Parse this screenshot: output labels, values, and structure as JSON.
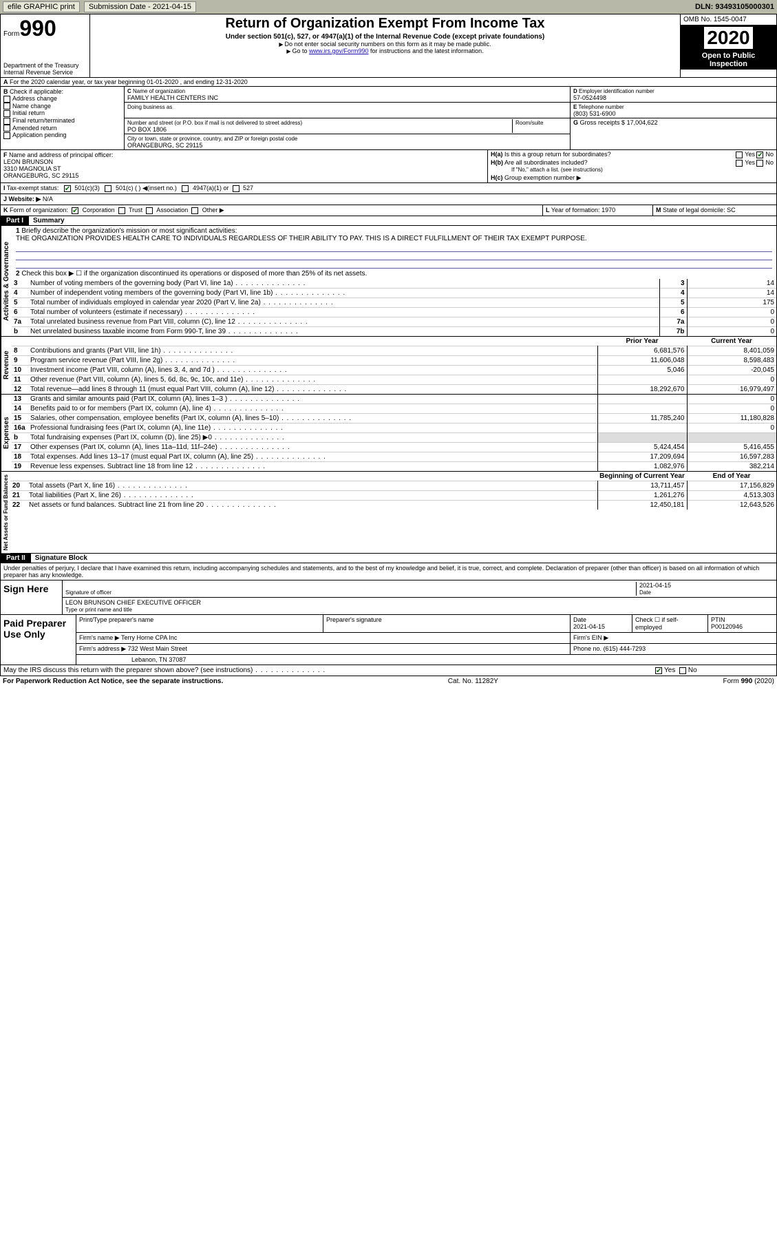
{
  "topbar": {
    "efile": "efile GRAPHIC print",
    "subdate_label": "Submission Date - 2021-04-15",
    "dln": "DLN: 93493105000301"
  },
  "header": {
    "form": "Form",
    "num": "990",
    "dept": "Department of the Treasury\nInternal Revenue Service",
    "title": "Return of Organization Exempt From Income Tax",
    "subtitle": "Under section 501(c), 527, or 4947(a)(1) of the Internal Revenue Code (except private foundations)",
    "note1": "Do not enter social security numbers on this form as it may be made public.",
    "note2_pre": "Go to ",
    "note2_link": "www.irs.gov/Form990",
    "note2_post": " for instructions and the latest information.",
    "omb": "OMB No. 1545-0047",
    "year": "2020",
    "open": "Open to Public Inspection"
  },
  "lineA": "For the 2020 calendar year, or tax year beginning 01-01-2020    , and ending 12-31-2020",
  "boxB": {
    "label": "Check if applicable:",
    "items": [
      "Address change",
      "Name change",
      "Initial return",
      "Final return/terminated",
      "Amended return",
      "Application pending"
    ]
  },
  "boxC": {
    "name_label": "Name of organization",
    "name": "FAMILY HEALTH CENTERS INC",
    "dba_label": "Doing business as",
    "addr_label": "Number and street (or P.O. box if mail is not delivered to street address)",
    "room_label": "Room/suite",
    "addr": "PO BOX 1806",
    "city_label": "City or town, state or province, country, and ZIP or foreign postal code",
    "city": "ORANGEBURG, SC  29115"
  },
  "boxD": {
    "label": "Employer identification number",
    "val": "57-0524498"
  },
  "boxE": {
    "label": "Telephone number",
    "val": "(803) 531-6900"
  },
  "boxG": {
    "label": "Gross receipts $",
    "val": "17,004,622"
  },
  "boxF": {
    "label": "Name and address of principal officer:",
    "name": "LEON BRUNSON",
    "addr1": "3310 MAGNOLIA ST",
    "addr2": "ORANGEBURG, SC  29115"
  },
  "boxH": {
    "a": "Is this a group return for subordinates?",
    "b": "Are all subordinates included?",
    "b_note": "If \"No,\" attach a list. (see instructions)",
    "c": "Group exemption number ▶"
  },
  "taxexempt": {
    "label": "Tax-exempt status:",
    "c3": "501(c)(3)",
    "c": "501(c) (  ) ◀(insert no.)",
    "a1": "4947(a)(1) or",
    "s527": "527"
  },
  "boxJ": {
    "label": "Website: ▶",
    "val": "N/A"
  },
  "boxK": {
    "label": "Form of organization:",
    "corp": "Corporation",
    "trust": "Trust",
    "assoc": "Association",
    "other": "Other ▶"
  },
  "boxL": {
    "label": "Year of formation:",
    "val": "1970"
  },
  "boxM": {
    "label": "State of legal domicile:",
    "val": "SC"
  },
  "part1": {
    "bar": "Part I",
    "title": "Summary"
  },
  "summary": {
    "q1_label": "Briefly describe the organization's mission or most significant activities:",
    "q1_text": "THE ORGANIZATION PROVIDES HEALTH CARE TO INDIVIDUALS REGARDLESS OF THEIR ABILITY TO PAY. THIS IS A DIRECT FULFILLMENT OF THEIR TAX EXEMPT PURPOSE.",
    "q2": "Check this box ▶ ☐ if the organization discontinued its operations or disposed of more than 25% of its net assets.",
    "rows_gov": [
      {
        "n": "3",
        "label": "Number of voting members of the governing body (Part VI, line 1a)",
        "box": "3",
        "cur": "14"
      },
      {
        "n": "4",
        "label": "Number of independent voting members of the governing body (Part VI, line 1b)",
        "box": "4",
        "cur": "14"
      },
      {
        "n": "5",
        "label": "Total number of individuals employed in calendar year 2020 (Part V, line 2a)",
        "box": "5",
        "cur": "175"
      },
      {
        "n": "6",
        "label": "Total number of volunteers (estimate if necessary)",
        "box": "6",
        "cur": "0"
      },
      {
        "n": "7a",
        "label": "Total unrelated business revenue from Part VIII, column (C), line 12",
        "box": "7a",
        "cur": "0"
      },
      {
        "n": "b",
        "label": "Net unrelated business taxable income from Form 990-T, line 39",
        "box": "7b",
        "cur": "0"
      }
    ],
    "hdr_prior": "Prior Year",
    "hdr_cur": "Current Year",
    "rows_rev": [
      {
        "n": "8",
        "label": "Contributions and grants (Part VIII, line 1h)",
        "prior": "6,681,576",
        "cur": "8,401,059"
      },
      {
        "n": "9",
        "label": "Program service revenue (Part VIII, line 2g)",
        "prior": "11,606,048",
        "cur": "8,598,483"
      },
      {
        "n": "10",
        "label": "Investment income (Part VIII, column (A), lines 3, 4, and 7d )",
        "prior": "5,046",
        "cur": "-20,045"
      },
      {
        "n": "11",
        "label": "Other revenue (Part VIII, column (A), lines 5, 6d, 8c, 9c, 10c, and 11e)",
        "prior": "",
        "cur": "0"
      },
      {
        "n": "12",
        "label": "Total revenue—add lines 8 through 11 (must equal Part VIII, column (A), line 12)",
        "prior": "18,292,670",
        "cur": "16,979,497"
      }
    ],
    "rows_exp": [
      {
        "n": "13",
        "label": "Grants and similar amounts paid (Part IX, column (A), lines 1–3 )",
        "prior": "",
        "cur": "0"
      },
      {
        "n": "14",
        "label": "Benefits paid to or for members (Part IX, column (A), line 4)",
        "prior": "",
        "cur": "0"
      },
      {
        "n": "15",
        "label": "Salaries, other compensation, employee benefits (Part IX, column (A), lines 5–10)",
        "prior": "11,785,240",
        "cur": "11,180,828"
      },
      {
        "n": "16a",
        "label": "Professional fundraising fees (Part IX, column (A), line 11e)",
        "prior": "",
        "cur": "0"
      },
      {
        "n": "b",
        "label": "Total fundraising expenses (Part IX, column (D), line 25) ▶0",
        "prior": "shade",
        "cur": "shade"
      },
      {
        "n": "17",
        "label": "Other expenses (Part IX, column (A), lines 11a–11d, 11f–24e)",
        "prior": "5,424,454",
        "cur": "5,416,455"
      },
      {
        "n": "18",
        "label": "Total expenses. Add lines 13–17 (must equal Part IX, column (A), line 25)",
        "prior": "17,209,694",
        "cur": "16,597,283"
      },
      {
        "n": "19",
        "label": "Revenue less expenses. Subtract line 18 from line 12",
        "prior": "1,082,976",
        "cur": "382,214"
      }
    ],
    "hdr_beg": "Beginning of Current Year",
    "hdr_end": "End of Year",
    "rows_net": [
      {
        "n": "20",
        "label": "Total assets (Part X, line 16)",
        "prior": "13,711,457",
        "cur": "17,156,829"
      },
      {
        "n": "21",
        "label": "Total liabilities (Part X, line 26)",
        "prior": "1,261,276",
        "cur": "4,513,303"
      },
      {
        "n": "22",
        "label": "Net assets or fund balances. Subtract line 21 from line 20",
        "prior": "12,450,181",
        "cur": "12,643,526"
      }
    ],
    "vlabels": {
      "gov": "Activities & Governance",
      "rev": "Revenue",
      "exp": "Expenses",
      "net": "Net Assets or Fund Balances"
    }
  },
  "part2": {
    "bar": "Part II",
    "title": "Signature Block"
  },
  "penalties": "Under penalties of perjury, I declare that I have examined this return, including accompanying schedules and statements, and to the best of my knowledge and belief, it is true, correct, and complete. Declaration of preparer (other than officer) is based on all information of which preparer has any knowledge.",
  "sign": {
    "here": "Sign Here",
    "sig_label": "Signature of officer",
    "date_label": "Date",
    "date": "2021-04-15",
    "name": "LEON BRUNSON CHIEF EXECUTIVE OFFICER",
    "name_label": "Type or print name and title"
  },
  "prep": {
    "label": "Paid Preparer Use Only",
    "c1": "Print/Type preparer's name",
    "c2": "Preparer's signature",
    "c3": "Date",
    "c3v": "2021-04-15",
    "c4": "Check ☐ if self-employed",
    "c5": "PTIN",
    "c5v": "P00120946",
    "firm_label": "Firm's name   ▶",
    "firm": "Terry Horne CPA Inc",
    "ein_label": "Firm's EIN ▶",
    "addr_label": "Firm's address ▶",
    "addr": "732 West Main Street",
    "addr2": "Lebanon, TN  37087",
    "phone_label": "Phone no.",
    "phone": "(615) 444-7293"
  },
  "discuss": {
    "q": "May the IRS discuss this return with the preparer shown above? (see instructions)",
    "yes": "Yes",
    "no": "No"
  },
  "footer": {
    "pra": "For Paperwork Reduction Act Notice, see the separate instructions.",
    "cat": "Cat. No. 11282Y",
    "form": "Form 990 (2020)"
  }
}
